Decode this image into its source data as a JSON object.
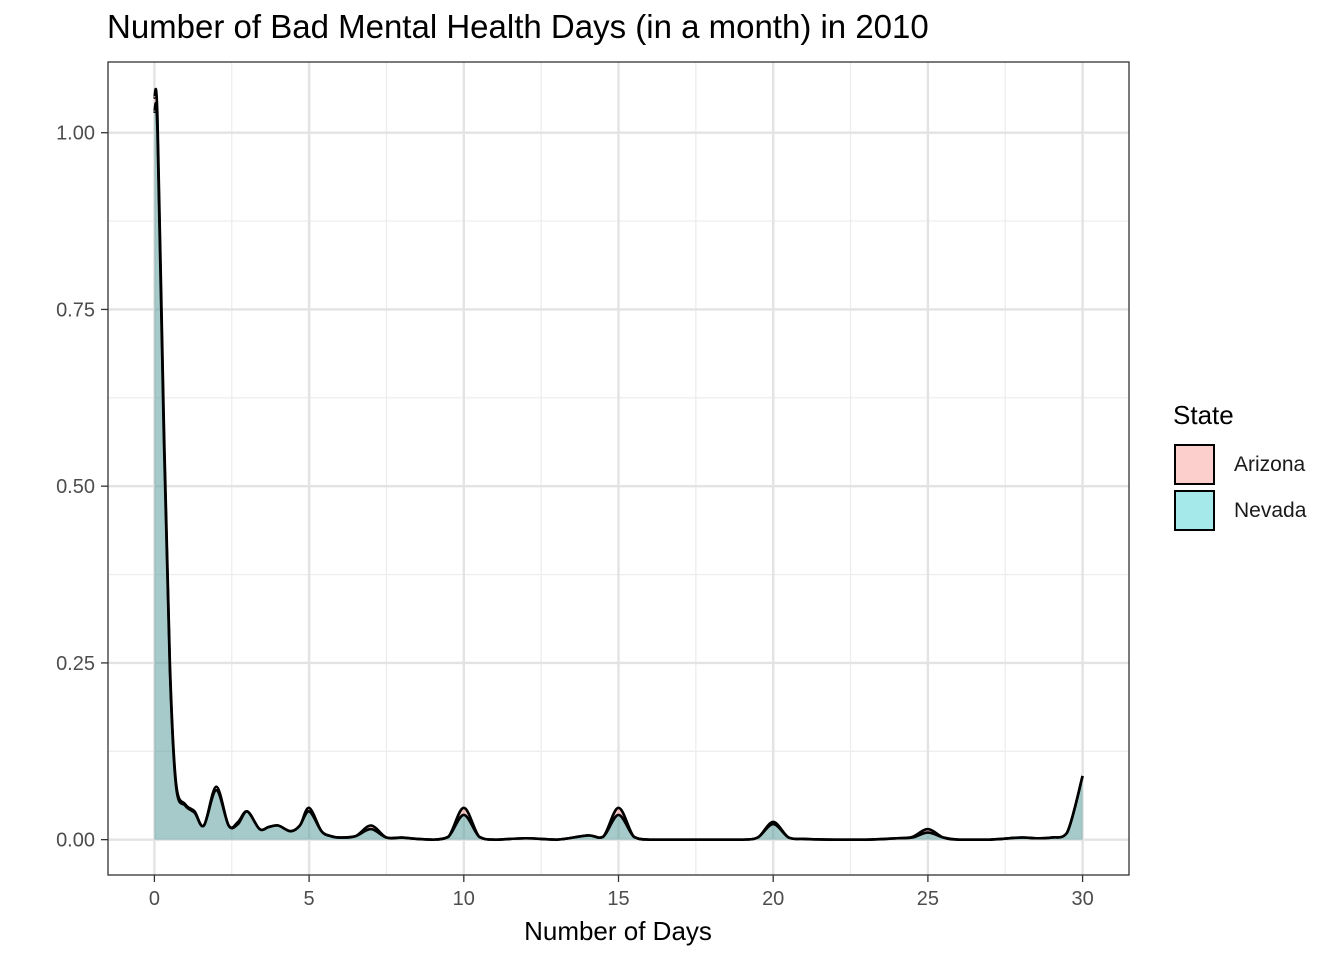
{
  "chart_data": {
    "type": "area",
    "title": "Number of Bad Mental Health Days (in a month) in 2010",
    "xlabel": "Number of Days",
    "ylabel": "",
    "xlim": [
      -1.5,
      31.5
    ],
    "ylim": [
      -0.05,
      1.1
    ],
    "xticks": [
      0,
      5,
      10,
      15,
      20,
      25,
      30
    ],
    "xtick_labels": [
      "0",
      "5",
      "10",
      "15",
      "20",
      "25",
      "30"
    ],
    "yticks": [
      0,
      0.25,
      0.5,
      0.75,
      1.0
    ],
    "ytick_labels": [
      "0.00",
      "0.25",
      "0.50",
      "0.75",
      "1.00"
    ],
    "grid": true,
    "legend": {
      "title": "State",
      "position": "right"
    },
    "series": [
      {
        "name": "Arizona",
        "color": "#F8766D",
        "x": [
          0,
          0.1,
          0.3,
          0.5,
          0.7,
          1,
          1.3,
          1.6,
          2,
          2.4,
          2.7,
          3,
          3.4,
          3.7,
          4,
          4.4,
          4.7,
          5,
          5.4,
          5.7,
          6,
          6.5,
          7,
          7.5,
          8,
          8.5,
          9,
          9.5,
          10,
          10.5,
          11,
          12,
          13,
          14,
          14.5,
          15,
          15.5,
          16,
          17,
          18,
          19,
          19.5,
          20,
          20.5,
          21,
          22,
          23,
          24,
          24.5,
          25,
          25.5,
          26,
          27,
          28,
          28.5,
          29,
          29.5,
          30
        ],
        "values": [
          1.05,
          1.02,
          0.6,
          0.25,
          0.08,
          0.05,
          0.04,
          0.02,
          0.075,
          0.02,
          0.025,
          0.04,
          0.015,
          0.018,
          0.02,
          0.012,
          0.02,
          0.045,
          0.012,
          0.005,
          0.003,
          0.005,
          0.02,
          0.003,
          0.003,
          0.001,
          0.0,
          0.004,
          0.045,
          0.004,
          0.0,
          0.002,
          0.0,
          0.006,
          0.004,
          0.045,
          0.004,
          0.0,
          0.0,
          0.0,
          0.0,
          0.003,
          0.025,
          0.003,
          0.001,
          0.0,
          0.0,
          0.002,
          0.004,
          0.015,
          0.003,
          0.0,
          0.0,
          0.003,
          0.002,
          0.003,
          0.01,
          0.09
        ]
      },
      {
        "name": "Nevada",
        "color": "#00BFC4",
        "x": [
          0,
          0.1,
          0.3,
          0.5,
          0.7,
          1,
          1.3,
          1.6,
          2,
          2.4,
          2.7,
          3,
          3.4,
          3.7,
          4,
          4.4,
          4.7,
          5,
          5.4,
          5.7,
          6,
          6.5,
          7,
          7.5,
          8,
          8.5,
          9,
          9.5,
          10,
          10.5,
          11,
          12,
          13,
          14,
          14.5,
          15,
          15.5,
          16,
          17,
          18,
          19,
          19.5,
          20,
          20.5,
          21,
          22,
          23,
          24,
          24.5,
          25,
          25.5,
          26,
          27,
          28,
          28.5,
          29,
          29.5,
          30
        ],
        "values": [
          1.03,
          1.0,
          0.58,
          0.24,
          0.075,
          0.048,
          0.038,
          0.02,
          0.07,
          0.02,
          0.022,
          0.04,
          0.015,
          0.018,
          0.02,
          0.012,
          0.02,
          0.04,
          0.012,
          0.005,
          0.003,
          0.005,
          0.015,
          0.003,
          0.003,
          0.001,
          0.0,
          0.004,
          0.035,
          0.004,
          0.0,
          0.002,
          0.0,
          0.006,
          0.004,
          0.035,
          0.004,
          0.0,
          0.0,
          0.0,
          0.0,
          0.003,
          0.022,
          0.003,
          0.001,
          0.0,
          0.0,
          0.002,
          0.003,
          0.01,
          0.003,
          0.0,
          0.0,
          0.003,
          0.002,
          0.003,
          0.01,
          0.09
        ]
      }
    ]
  }
}
